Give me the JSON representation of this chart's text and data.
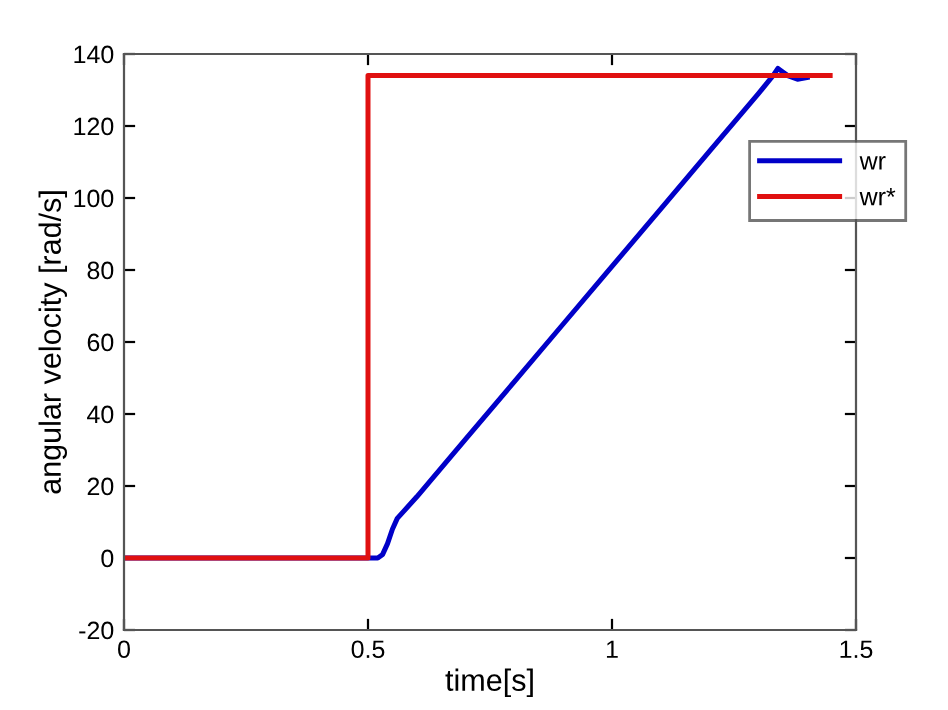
{
  "chart_data": {
    "type": "line",
    "xlabel": "time[s]",
    "ylabel": "angular velocity [rad/s]",
    "xlim": [
      0,
      1.5
    ],
    "xticks": [
      0,
      0.5,
      1,
      1.5
    ],
    "ylim": [
      -20,
      140
    ],
    "yticks": [
      -20,
      0,
      20,
      40,
      60,
      80,
      100,
      120,
      140
    ],
    "grid": false,
    "legend": "top right",
    "marker": "none",
    "line_style": "solid",
    "series": [
      {
        "name": "wr",
        "color": "#0000c8",
        "x": [
          0,
          0.5,
          0.52,
          0.53,
          0.54,
          0.55,
          0.56,
          0.6,
          0.7,
          0.8,
          0.9,
          1,
          1.1,
          1.2,
          1.3,
          1.33,
          1.34,
          1.35,
          1.36,
          1.38,
          1.4
        ],
        "values": [
          0,
          0,
          0,
          1,
          4,
          8,
          11,
          17,
          33,
          49,
          65,
          81,
          97,
          113,
          129,
          134,
          136,
          135,
          134,
          133,
          133.5
        ]
      },
      {
        "name": "wr*",
        "color": "#e01010",
        "x": [
          0,
          0.5,
          0.5,
          1.447
        ],
        "values": [
          0,
          0,
          134,
          134
        ]
      }
    ]
  }
}
